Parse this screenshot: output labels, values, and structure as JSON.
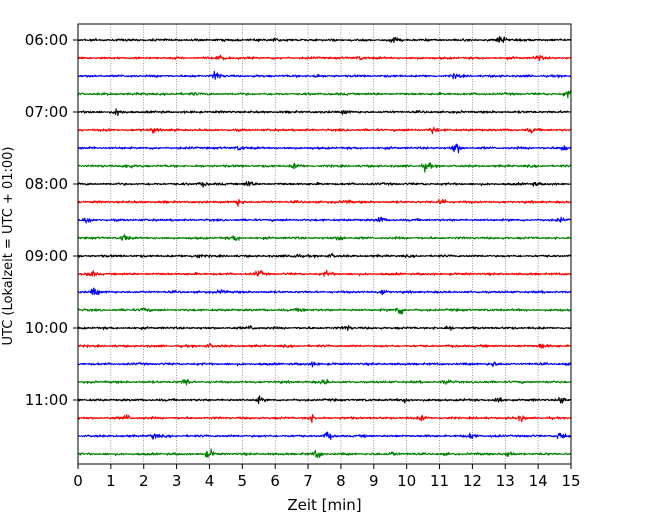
{
  "chart_data": {
    "type": "line",
    "title": "",
    "xlabel": "Zeit  [min]",
    "ylabel": "UTC (Lokalzeit = UTC + 01:00)",
    "xlim": [
      0,
      15
    ],
    "x_ticks": [
      "0",
      "1",
      "2",
      "3",
      "4",
      "5",
      "6",
      "7",
      "8",
      "9",
      "10",
      "11",
      "12",
      "13",
      "14",
      "15"
    ],
    "y_ticks": [
      "06:00",
      "07:00",
      "08:00",
      "09:00",
      "10:00",
      "11:00"
    ],
    "grid": "vertical dotted at each minute",
    "trace_interval_minutes": 15,
    "start_time": "06:00",
    "end_time": "12:00",
    "color_cycle": [
      "#000000",
      "#ff0000",
      "#0000ff",
      "#008000"
    ],
    "series": [
      {
        "time": "06:00",
        "color": "#000000",
        "events": [
          {
            "t": 12.9,
            "amp": 0.9
          },
          {
            "t": 9.6,
            "amp": 0.5
          },
          {
            "t": 6.0,
            "amp": 0.4
          }
        ]
      },
      {
        "time": "06:15",
        "color": "#ff0000",
        "events": [
          {
            "t": 4.4,
            "amp": 0.6
          },
          {
            "t": 8.6,
            "amp": 0.5
          },
          {
            "t": 14.0,
            "amp": 0.5
          }
        ]
      },
      {
        "time": "06:30",
        "color": "#0000ff",
        "events": [
          {
            "t": 4.2,
            "amp": 1.0
          },
          {
            "t": 11.5,
            "amp": 0.4
          },
          {
            "t": 7.2,
            "amp": 0.4
          }
        ]
      },
      {
        "time": "06:45",
        "color": "#008000",
        "events": [
          {
            "t": 14.9,
            "amp": 0.6
          },
          {
            "t": 3.5,
            "amp": 0.3
          }
        ]
      },
      {
        "time": "07:00",
        "color": "#000000",
        "events": [
          {
            "t": 1.2,
            "amp": 0.6
          },
          {
            "t": 8.1,
            "amp": 0.4
          }
        ]
      },
      {
        "time": "07:15",
        "color": "#ff0000",
        "events": [
          {
            "t": 2.3,
            "amp": 0.6
          },
          {
            "t": 10.8,
            "amp": 0.6
          },
          {
            "t": 13.8,
            "amp": 0.4
          }
        ]
      },
      {
        "time": "07:30",
        "color": "#0000ff",
        "events": [
          {
            "t": 11.5,
            "amp": 1.0
          },
          {
            "t": 4.9,
            "amp": 0.6
          },
          {
            "t": 14.8,
            "amp": 0.6
          }
        ]
      },
      {
        "time": "07:45",
        "color": "#008000",
        "events": [
          {
            "t": 10.6,
            "amp": 0.9
          },
          {
            "t": 1.5,
            "amp": 0.5
          },
          {
            "t": 6.6,
            "amp": 0.5
          }
        ]
      },
      {
        "time": "08:00",
        "color": "#000000",
        "events": [
          {
            "t": 3.8,
            "amp": 0.5
          },
          {
            "t": 5.2,
            "amp": 0.5
          },
          {
            "t": 13.9,
            "amp": 0.4
          }
        ]
      },
      {
        "time": "08:15",
        "color": "#ff0000",
        "events": [
          {
            "t": 4.9,
            "amp": 0.7
          },
          {
            "t": 11.1,
            "amp": 0.6
          },
          {
            "t": 8.2,
            "amp": 0.4
          }
        ]
      },
      {
        "time": "08:30",
        "color": "#0000ff",
        "events": [
          {
            "t": 0.3,
            "amp": 0.6
          },
          {
            "t": 9.2,
            "amp": 0.5
          },
          {
            "t": 14.7,
            "amp": 0.5
          }
        ]
      },
      {
        "time": "08:45",
        "color": "#008000",
        "events": [
          {
            "t": 1.4,
            "amp": 0.6
          },
          {
            "t": 4.8,
            "amp": 0.5
          },
          {
            "t": 8.0,
            "amp": 0.5
          }
        ]
      },
      {
        "time": "09:00",
        "color": "#000000",
        "events": [
          {
            "t": 3.6,
            "amp": 0.6
          },
          {
            "t": 6.6,
            "amp": 0.6
          },
          {
            "t": 7.7,
            "amp": 0.4
          }
        ]
      },
      {
        "time": "09:15",
        "color": "#ff0000",
        "events": [
          {
            "t": 0.4,
            "amp": 0.5
          },
          {
            "t": 5.5,
            "amp": 0.5
          },
          {
            "t": 7.6,
            "amp": 0.5
          }
        ]
      },
      {
        "time": "09:30",
        "color": "#0000ff",
        "events": [
          {
            "t": 0.5,
            "amp": 1.0
          },
          {
            "t": 4.4,
            "amp": 0.5
          },
          {
            "t": 9.3,
            "amp": 0.5
          }
        ]
      },
      {
        "time": "09:45",
        "color": "#008000",
        "events": [
          {
            "t": 9.8,
            "amp": 1.0
          },
          {
            "t": 2.0,
            "amp": 0.5
          },
          {
            "t": 6.8,
            "amp": 0.5
          }
        ]
      },
      {
        "time": "10:00",
        "color": "#000000",
        "events": [
          {
            "t": 5.3,
            "amp": 0.5
          },
          {
            "t": 8.2,
            "amp": 0.5
          },
          {
            "t": 11.3,
            "amp": 0.4
          }
        ]
      },
      {
        "time": "10:15",
        "color": "#ff0000",
        "events": [
          {
            "t": 14.1,
            "amp": 0.6
          },
          {
            "t": 4.0,
            "amp": 0.4
          }
        ]
      },
      {
        "time": "10:30",
        "color": "#0000ff",
        "events": [
          {
            "t": 7.2,
            "amp": 0.5
          },
          {
            "t": 12.6,
            "amp": 0.5
          }
        ]
      },
      {
        "time": "10:45",
        "color": "#008000",
        "events": [
          {
            "t": 3.3,
            "amp": 0.6
          },
          {
            "t": 7.5,
            "amp": 0.5
          },
          {
            "t": 11.2,
            "amp": 0.4
          }
        ]
      },
      {
        "time": "11:00",
        "color": "#000000",
        "events": [
          {
            "t": 5.5,
            "amp": 0.5
          },
          {
            "t": 10.0,
            "amp": 0.5
          },
          {
            "t": 12.8,
            "amp": 0.6
          },
          {
            "t": 14.7,
            "amp": 0.6
          }
        ]
      },
      {
        "time": "11:15",
        "color": "#ff0000",
        "events": [
          {
            "t": 1.5,
            "amp": 0.6
          },
          {
            "t": 7.1,
            "amp": 0.6
          },
          {
            "t": 10.5,
            "amp": 0.5
          },
          {
            "t": 13.5,
            "amp": 0.5
          }
        ]
      },
      {
        "time": "11:30",
        "color": "#0000ff",
        "events": [
          {
            "t": 2.3,
            "amp": 0.6
          },
          {
            "t": 7.6,
            "amp": 0.6
          },
          {
            "t": 12.0,
            "amp": 0.6
          },
          {
            "t": 14.7,
            "amp": 0.7
          }
        ]
      },
      {
        "time": "11:45",
        "color": "#008000",
        "events": [
          {
            "t": 4.0,
            "amp": 0.7
          },
          {
            "t": 7.3,
            "amp": 0.8
          },
          {
            "t": 9.6,
            "amp": 0.6
          },
          {
            "t": 13.1,
            "amp": 0.5
          }
        ]
      }
    ]
  }
}
